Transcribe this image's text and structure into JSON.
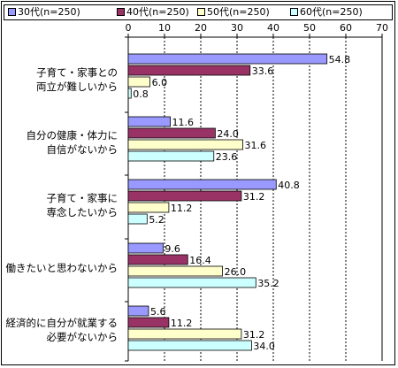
{
  "chart_data": {
    "type": "bar",
    "orientation": "horizontal",
    "categories": [
      "子育て・家事との\n両立が難しいから",
      "自分の健康・体力に\n自信がないから",
      "子育て・家事に\n専念したいから",
      "働きたいと思わないから",
      "経済的に自分が就業する\n必要がないから"
    ],
    "series": [
      {
        "name": "30代(n=250)",
        "color": "#9999ff",
        "values": [
          54.8,
          11.6,
          40.8,
          9.6,
          5.6
        ]
      },
      {
        "name": "40代(n=250)",
        "color": "#993366",
        "values": [
          33.6,
          24.0,
          31.2,
          16.4,
          11.2
        ]
      },
      {
        "name": "50代(n=250)",
        "color": "#ffffcc",
        "values": [
          6.0,
          31.6,
          11.2,
          26.0,
          31.2
        ]
      },
      {
        "name": "60代(n=250)",
        "color": "#ccffff",
        "values": [
          0.8,
          23.6,
          5.2,
          35.2,
          34.0
        ]
      }
    ],
    "xlim": [
      0,
      70
    ],
    "xticks": [
      0,
      10,
      20,
      30,
      40,
      50,
      60,
      70
    ],
    "grid": "vertical-dashed",
    "legend": "top",
    "value_labels": true
  }
}
